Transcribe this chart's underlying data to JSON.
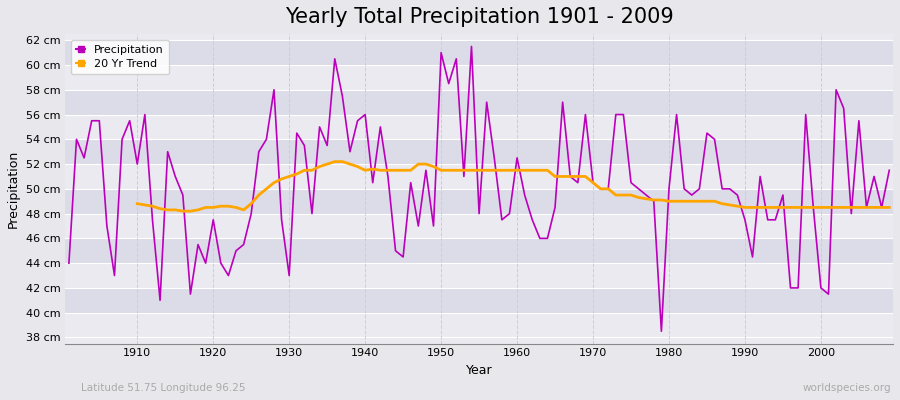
{
  "title": "Yearly Total Precipitation 1901 - 2009",
  "xlabel": "Year",
  "ylabel": "Precipitation",
  "subtitle_left": "Latitude 51.75 Longitude 96.25",
  "subtitle_right": "worldspecies.org",
  "years": [
    1901,
    1902,
    1903,
    1904,
    1905,
    1906,
    1907,
    1908,
    1909,
    1910,
    1911,
    1912,
    1913,
    1914,
    1915,
    1916,
    1917,
    1918,
    1919,
    1920,
    1921,
    1922,
    1923,
    1924,
    1925,
    1926,
    1927,
    1928,
    1929,
    1930,
    1931,
    1932,
    1933,
    1934,
    1935,
    1936,
    1937,
    1938,
    1939,
    1940,
    1941,
    1942,
    1943,
    1944,
    1945,
    1946,
    1947,
    1948,
    1949,
    1950,
    1951,
    1952,
    1953,
    1954,
    1955,
    1956,
    1957,
    1958,
    1959,
    1960,
    1961,
    1962,
    1963,
    1964,
    1965,
    1966,
    1967,
    1968,
    1969,
    1970,
    1971,
    1972,
    1973,
    1974,
    1975,
    1976,
    1977,
    1978,
    1979,
    1980,
    1981,
    1982,
    1983,
    1984,
    1985,
    1986,
    1987,
    1988,
    1989,
    1990,
    1991,
    1992,
    1993,
    1994,
    1995,
    1996,
    1997,
    1998,
    1999,
    2000,
    2001,
    2002,
    2003,
    2004,
    2005,
    2006,
    2007,
    2008,
    2009
  ],
  "precip": [
    44.0,
    54.0,
    52.5,
    55.5,
    55.5,
    47.0,
    43.0,
    54.0,
    55.5,
    52.0,
    56.0,
    47.5,
    41.0,
    53.0,
    51.0,
    49.5,
    41.5,
    45.5,
    44.0,
    47.5,
    44.0,
    43.0,
    45.0,
    45.5,
    48.0,
    53.0,
    54.0,
    58.0,
    47.5,
    43.0,
    54.5,
    53.5,
    48.0,
    55.0,
    53.5,
    60.5,
    57.5,
    53.0,
    55.5,
    56.0,
    50.5,
    55.0,
    51.0,
    45.0,
    44.5,
    50.5,
    47.0,
    51.5,
    47.0,
    61.0,
    58.5,
    60.5,
    51.0,
    61.5,
    48.0,
    57.0,
    52.5,
    47.5,
    48.0,
    52.5,
    49.5,
    47.5,
    46.0,
    46.0,
    48.5,
    57.0,
    51.0,
    50.5,
    56.0,
    50.5,
    50.0,
    50.0,
    56.0,
    56.0,
    50.5,
    50.0,
    49.5,
    49.0,
    38.5,
    50.0,
    56.0,
    50.0,
    49.5,
    50.0,
    54.5,
    54.0,
    50.0,
    50.0,
    49.5,
    47.5,
    44.5,
    51.0,
    47.5,
    47.5,
    49.5,
    42.0,
    42.0,
    56.0,
    48.5,
    42.0,
    41.5,
    58.0,
    56.5,
    48.0,
    55.5,
    48.5,
    51.0,
    48.5,
    51.5
  ],
  "trend_years": [
    1910,
    1911,
    1912,
    1913,
    1914,
    1915,
    1916,
    1917,
    1918,
    1919,
    1920,
    1921,
    1922,
    1923,
    1924,
    1925,
    1926,
    1927,
    1928,
    1929,
    1930,
    1931,
    1932,
    1933,
    1934,
    1935,
    1936,
    1937,
    1938,
    1939,
    1940,
    1941,
    1942,
    1943,
    1944,
    1945,
    1946,
    1947,
    1948,
    1949,
    1950,
    1951,
    1952,
    1953,
    1954,
    1955,
    1956,
    1957,
    1958,
    1959,
    1960,
    1961,
    1962,
    1963,
    1964,
    1965,
    1966,
    1967,
    1968,
    1969,
    1970,
    1971,
    1972,
    1973,
    1974,
    1975,
    1976,
    1977,
    1978,
    1979,
    1980,
    1981,
    1982,
    1983,
    1984,
    1985,
    1986,
    1987,
    1988,
    1989,
    1990,
    1991,
    1992,
    1993,
    1994,
    1995,
    1996,
    1997,
    1998,
    1999,
    2000,
    2001,
    2002,
    2003,
    2004,
    2005,
    2006,
    2007,
    2008,
    2009
  ],
  "trend": [
    48.8,
    48.7,
    48.6,
    48.4,
    48.3,
    48.3,
    48.2,
    48.2,
    48.3,
    48.5,
    48.5,
    48.6,
    48.6,
    48.5,
    48.3,
    48.8,
    49.5,
    50.0,
    50.5,
    50.8,
    51.0,
    51.2,
    51.5,
    51.5,
    51.8,
    52.0,
    52.2,
    52.2,
    52.0,
    51.8,
    51.5,
    51.6,
    51.5,
    51.5,
    51.5,
    51.5,
    51.5,
    52.0,
    52.0,
    51.8,
    51.5,
    51.5,
    51.5,
    51.5,
    51.5,
    51.5,
    51.5,
    51.5,
    51.5,
    51.5,
    51.5,
    51.5,
    51.5,
    51.5,
    51.5,
    51.0,
    51.0,
    51.0,
    51.0,
    51.0,
    50.5,
    50.0,
    50.0,
    49.5,
    49.5,
    49.5,
    49.3,
    49.2,
    49.1,
    49.1,
    49.0,
    49.0,
    49.0,
    49.0,
    49.0,
    49.0,
    49.0,
    48.8,
    48.7,
    48.6,
    48.5,
    48.5,
    48.5,
    48.5,
    48.5,
    48.5,
    48.5,
    48.5,
    48.5,
    48.5,
    48.5,
    48.5,
    48.5,
    48.5,
    48.5,
    48.5,
    48.5,
    48.5,
    48.5,
    48.5
  ],
  "precip_color": "#BB00BB",
  "trend_color": "#FFA500",
  "bg_color": "#E8E8EC",
  "plot_bg_color": "#EAEAF0",
  "grid_color_h": "#FFFFFF",
  "grid_color_v": "#CCCCDD",
  "band_color_light": "#EAEAF0",
  "band_color_dark": "#DCDCE8",
  "ylim": [
    37.5,
    62.5
  ],
  "yticks": [
    38,
    40,
    42,
    44,
    46,
    48,
    50,
    52,
    54,
    56,
    58,
    60,
    62
  ],
  "xticks": [
    1910,
    1920,
    1930,
    1940,
    1950,
    1960,
    1970,
    1980,
    1990,
    2000
  ],
  "title_fontsize": 15,
  "label_fontsize": 9,
  "tick_fontsize": 8,
  "legend_fontsize": 8,
  "watermark_fontsize": 7.5
}
